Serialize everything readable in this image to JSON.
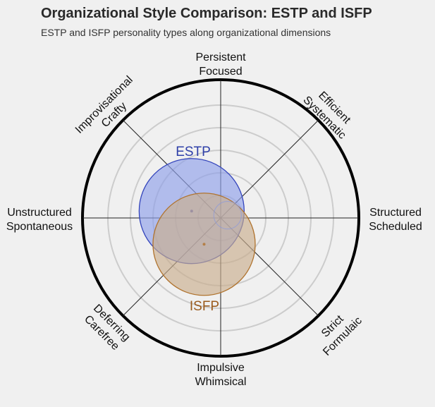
{
  "title": "Organizational Style Comparison: ESTP and ISFP",
  "subtitle": "ESTP and ISFP personality types along organizational dimensions",
  "chart_data": {
    "type": "radar-bubble",
    "axes": [
      {
        "direction": "top",
        "lines": [
          "Persistent",
          "Focused"
        ]
      },
      {
        "direction": "top-right",
        "lines": [
          "Efficient",
          "Systematic"
        ]
      },
      {
        "direction": "right",
        "lines": [
          "Structured",
          "Scheduled"
        ]
      },
      {
        "direction": "bottom-right",
        "lines": [
          "Strict",
          "Formulaic"
        ]
      },
      {
        "direction": "bottom",
        "lines": [
          "Impulsive",
          "Whimsical"
        ]
      },
      {
        "direction": "bottom-left",
        "lines": [
          "Deferring",
          "Carefree"
        ]
      },
      {
        "direction": "left",
        "lines": [
          "Unstructured",
          "Spontaneous"
        ]
      },
      {
        "direction": "top-left",
        "lines": [
          "Improvisational",
          "Crafty"
        ]
      }
    ],
    "rings": 5,
    "series": [
      {
        "name": "ESTP",
        "center": [
          -0.21,
          0.05
        ],
        "radius": 0.38,
        "fill": "#8fa0ea",
        "stroke": "#3344bb",
        "label_color": "#2e3fa8"
      },
      {
        "name": "ISFP",
        "center": [
          -0.12,
          -0.19
        ],
        "radius": 0.37,
        "fill": "#c9ae8e",
        "stroke": "#b0732e",
        "label_color": "#9a5a1c"
      }
    ],
    "inner_circle": {
      "center": [
        0.05,
        0.02
      ],
      "radius": 0.1
    }
  }
}
